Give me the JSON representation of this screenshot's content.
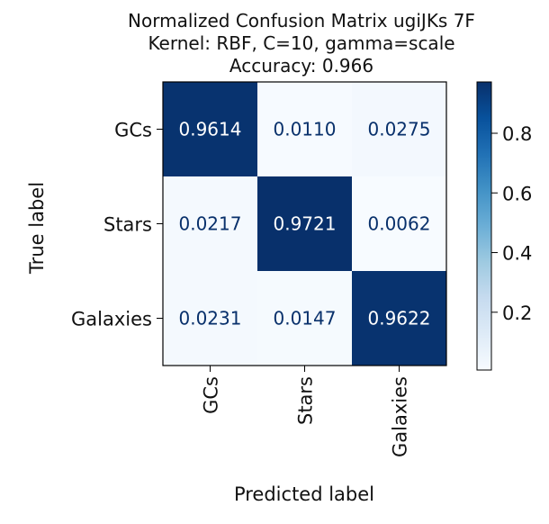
{
  "chart_data": {
    "type": "heatmap",
    "title_lines": [
      "Normalized Confusion Matrix ugiJKs  7F",
      "Kernel: RBF, C=10, gamma=scale",
      "Accuracy: 0.966"
    ],
    "xlabel": "Predicted label",
    "ylabel": "True label",
    "x_categories": [
      "GCs",
      "Stars",
      "Galaxies"
    ],
    "y_categories": [
      "GCs",
      "Stars",
      "Galaxies"
    ],
    "values": [
      [
        0.9614,
        0.011,
        0.0275
      ],
      [
        0.0217,
        0.9721,
        0.0062
      ],
      [
        0.0231,
        0.0147,
        0.9622
      ]
    ],
    "cell_labels": [
      [
        "0.9614",
        "0.0110",
        "0.0275"
      ],
      [
        "0.0217",
        "0.9721",
        "0.0062"
      ],
      [
        "0.0231",
        "0.0147",
        "0.9622"
      ]
    ],
    "colormap": "Blues",
    "color_range": [
      0.0062,
      0.9721
    ],
    "colorbar_ticks": [
      0.2,
      0.4,
      0.6,
      0.8
    ],
    "colorbar_tick_labels": [
      "0.2",
      "0.4",
      "0.6",
      "0.8"
    ]
  }
}
